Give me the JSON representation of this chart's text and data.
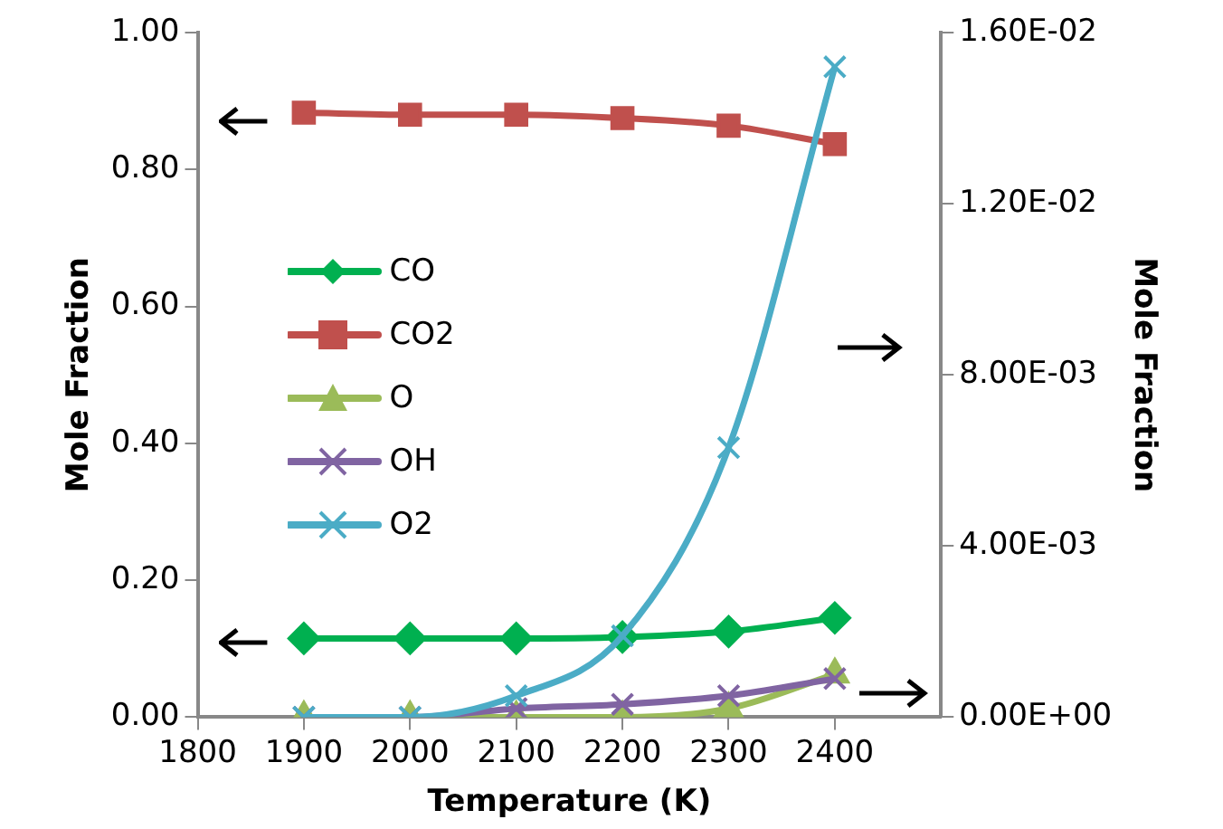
{
  "chart_data": {
    "type": "line",
    "xlabel": "Temperature (K)",
    "ylabel": "Mole Fraction",
    "y2label": "Mole Fraction",
    "x": [
      1900,
      2000,
      2100,
      2200,
      2300,
      2400
    ],
    "xlim": [
      1800,
      2500
    ],
    "xticks": [
      1800,
      1900,
      2000,
      2100,
      2200,
      2300,
      2400
    ],
    "ylim": [
      0,
      1
    ],
    "yticks": [
      {
        "value": 0,
        "label": "0.00"
      },
      {
        "value": 0.2,
        "label": "0.20"
      },
      {
        "value": 0.4,
        "label": "0.40"
      },
      {
        "value": 0.6,
        "label": "0.60"
      },
      {
        "value": 0.8,
        "label": "0.80"
      },
      {
        "value": 1,
        "label": "1.00"
      }
    ],
    "y2lim": [
      0,
      0.016
    ],
    "y2ticks": [
      {
        "value": 0,
        "label": "0.00E+00"
      },
      {
        "value": 0.004,
        "label": "4.00E-03"
      },
      {
        "value": 0.008,
        "label": "8.00E-03"
      },
      {
        "value": 0.012,
        "label": "1.20E-02"
      },
      {
        "value": 0.016,
        "label": "1.60E-02"
      }
    ],
    "grid": false,
    "legend": "left",
    "line_style": "solid",
    "series": [
      {
        "name": "CO",
        "color": "#00b050",
        "marker": "diamond",
        "values": [
          0.115,
          0.115,
          0.115,
          0.117,
          0.125,
          0.145
        ]
      },
      {
        "name": "CO2",
        "color": "#c0504d",
        "marker": "square",
        "values": [
          0.883,
          0.88,
          0.88,
          0.875,
          0.864,
          0.837
        ]
      },
      {
        "name": "O",
        "color": "#9bbb59",
        "marker": "triangle",
        "axis": "y2",
        "values": [
          0,
          0,
          0,
          0,
          0.0002,
          0.001
        ]
      },
      {
        "name": "OH",
        "color": "#8064a2",
        "marker": "cross",
        "axis": "y2",
        "values": [
          0,
          0,
          0.0002,
          0.0003,
          0.0005,
          0.0009
        ]
      },
      {
        "name": "O2",
        "color": "#4bacc6",
        "marker": "cross",
        "axis": "y2",
        "values": [
          0,
          0,
          0.0005,
          0.0019,
          0.0063,
          0.0152
        ]
      }
    ]
  }
}
